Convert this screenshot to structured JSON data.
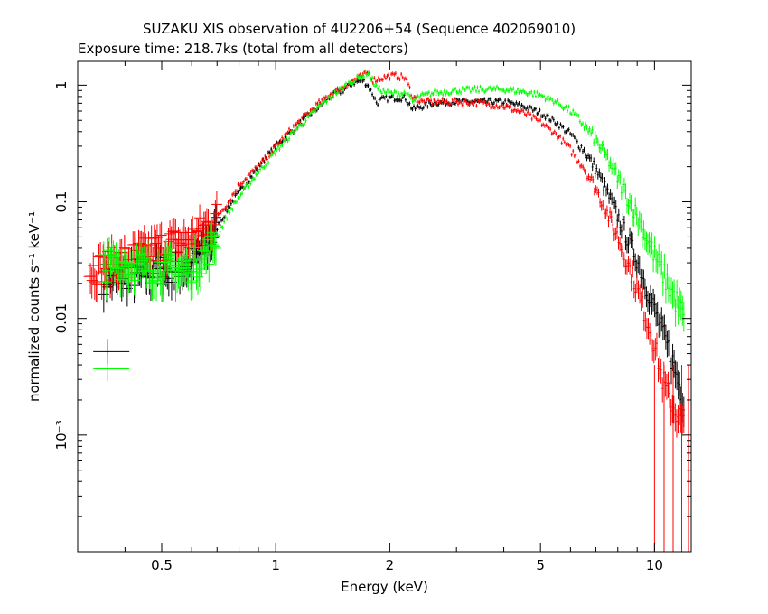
{
  "chart_data": {
    "type": "scatter",
    "title": "SUZAKU XIS observation of 4U2206+54 (Sequence 402069010)",
    "subtitle": "Exposure time: 218.7ks (total from all detectors)",
    "xlabel": "Energy (keV)",
    "ylabel": "normalized counts s⁻¹ keV⁻¹",
    "xscale": "log",
    "yscale": "log",
    "xlim": [
      0.3,
      12.5
    ],
    "ylim": [
      0.0001,
      1.6
    ],
    "grid": false,
    "x_ticks": [
      {
        "value": 0.5,
        "label": "0.5"
      },
      {
        "value": 1,
        "label": "1"
      },
      {
        "value": 2,
        "label": "2"
      },
      {
        "value": 5,
        "label": "5"
      },
      {
        "value": 10,
        "label": "10"
      }
    ],
    "y_ticks": [
      {
        "value": 1,
        "label": "1"
      },
      {
        "value": 0.1,
        "label": "0.1"
      },
      {
        "value": 0.01,
        "label": "0.01"
      },
      {
        "value": 0.001,
        "label": "10⁻³"
      }
    ],
    "series": [
      {
        "color": "#000000",
        "x": [
          0.35,
          0.4,
          0.45,
          0.5,
          0.55,
          0.6,
          0.65,
          0.7,
          0.75,
          0.8,
          0.9,
          1.0,
          1.1,
          1.2,
          1.3,
          1.4,
          1.5,
          1.6,
          1.7,
          1.75,
          1.8,
          1.85,
          1.9,
          2.0,
          2.1,
          2.2,
          2.3,
          2.4,
          2.6,
          3.0,
          3.5,
          4.0,
          4.5,
          5.0,
          5.5,
          6.0,
          6.5,
          7.0,
          7.5,
          8.0,
          9.0,
          10.0,
          11.0,
          12.0
        ],
        "y": [
          0.022,
          0.024,
          0.025,
          0.026,
          0.028,
          0.03,
          0.04,
          0.06,
          0.09,
          0.12,
          0.2,
          0.3,
          0.4,
          0.52,
          0.65,
          0.8,
          0.9,
          1.05,
          1.1,
          1.0,
          0.85,
          0.7,
          0.75,
          0.78,
          0.78,
          0.78,
          0.62,
          0.65,
          0.7,
          0.72,
          0.72,
          0.72,
          0.66,
          0.58,
          0.48,
          0.38,
          0.28,
          0.19,
          0.12,
          0.075,
          0.032,
          0.012,
          0.005,
          0.002
        ]
      },
      {
        "color": "#ff0000",
        "x": [
          0.32,
          0.35,
          0.4,
          0.45,
          0.5,
          0.55,
          0.6,
          0.65,
          0.7,
          0.75,
          0.8,
          0.85,
          0.9,
          1.0,
          1.1,
          1.2,
          1.3,
          1.4,
          1.5,
          1.6,
          1.7,
          1.75,
          1.8,
          1.9,
          2.0,
          2.1,
          2.2,
          2.3,
          2.4,
          2.6,
          3.0,
          3.5,
          4.0,
          4.5,
          5.0,
          5.5,
          6.0,
          6.5,
          7.0,
          7.5,
          8.0,
          9.0,
          10.0,
          10.5,
          11.0,
          12.0
        ],
        "y": [
          0.025,
          0.028,
          0.032,
          0.036,
          0.042,
          0.045,
          0.048,
          0.06,
          0.075,
          0.1,
          0.14,
          0.17,
          0.2,
          0.3,
          0.42,
          0.55,
          0.7,
          0.85,
          0.95,
          1.1,
          1.2,
          1.3,
          1.1,
          1.15,
          1.2,
          1.2,
          1.15,
          0.8,
          0.72,
          0.72,
          0.72,
          0.7,
          0.66,
          0.58,
          0.48,
          0.38,
          0.28,
          0.2,
          0.13,
          0.08,
          0.05,
          0.018,
          0.006,
          0.003,
          0.002,
          0.0012
        ]
      },
      {
        "color": "#00ff00",
        "x": [
          0.35,
          0.4,
          0.45,
          0.5,
          0.55,
          0.6,
          0.65,
          0.7,
          0.75,
          0.8,
          0.9,
          1.0,
          1.1,
          1.2,
          1.3,
          1.4,
          1.5,
          1.6,
          1.7,
          1.75,
          1.8,
          1.85,
          1.9,
          2.0,
          2.1,
          2.2,
          2.3,
          2.4,
          2.6,
          3.0,
          3.5,
          4.0,
          4.5,
          5.0,
          5.5,
          6.0,
          6.5,
          7.0,
          7.5,
          8.0,
          9.0,
          10.0,
          11.0,
          12.0
        ],
        "y": [
          0.028,
          0.03,
          0.028,
          0.027,
          0.026,
          0.028,
          0.035,
          0.05,
          0.08,
          0.11,
          0.18,
          0.27,
          0.38,
          0.5,
          0.65,
          0.8,
          0.95,
          1.1,
          1.2,
          1.3,
          1.1,
          0.95,
          0.9,
          0.85,
          0.85,
          0.85,
          0.72,
          0.8,
          0.85,
          0.9,
          0.92,
          0.92,
          0.88,
          0.82,
          0.72,
          0.6,
          0.46,
          0.34,
          0.24,
          0.16,
          0.075,
          0.035,
          0.018,
          0.01
        ]
      }
    ],
    "low_energy_points": [
      {
        "color": "#000000",
        "x": 0.36,
        "y": 0.0052
      },
      {
        "color": "#00ff00",
        "x": 0.36,
        "y": 0.0037
      }
    ]
  }
}
